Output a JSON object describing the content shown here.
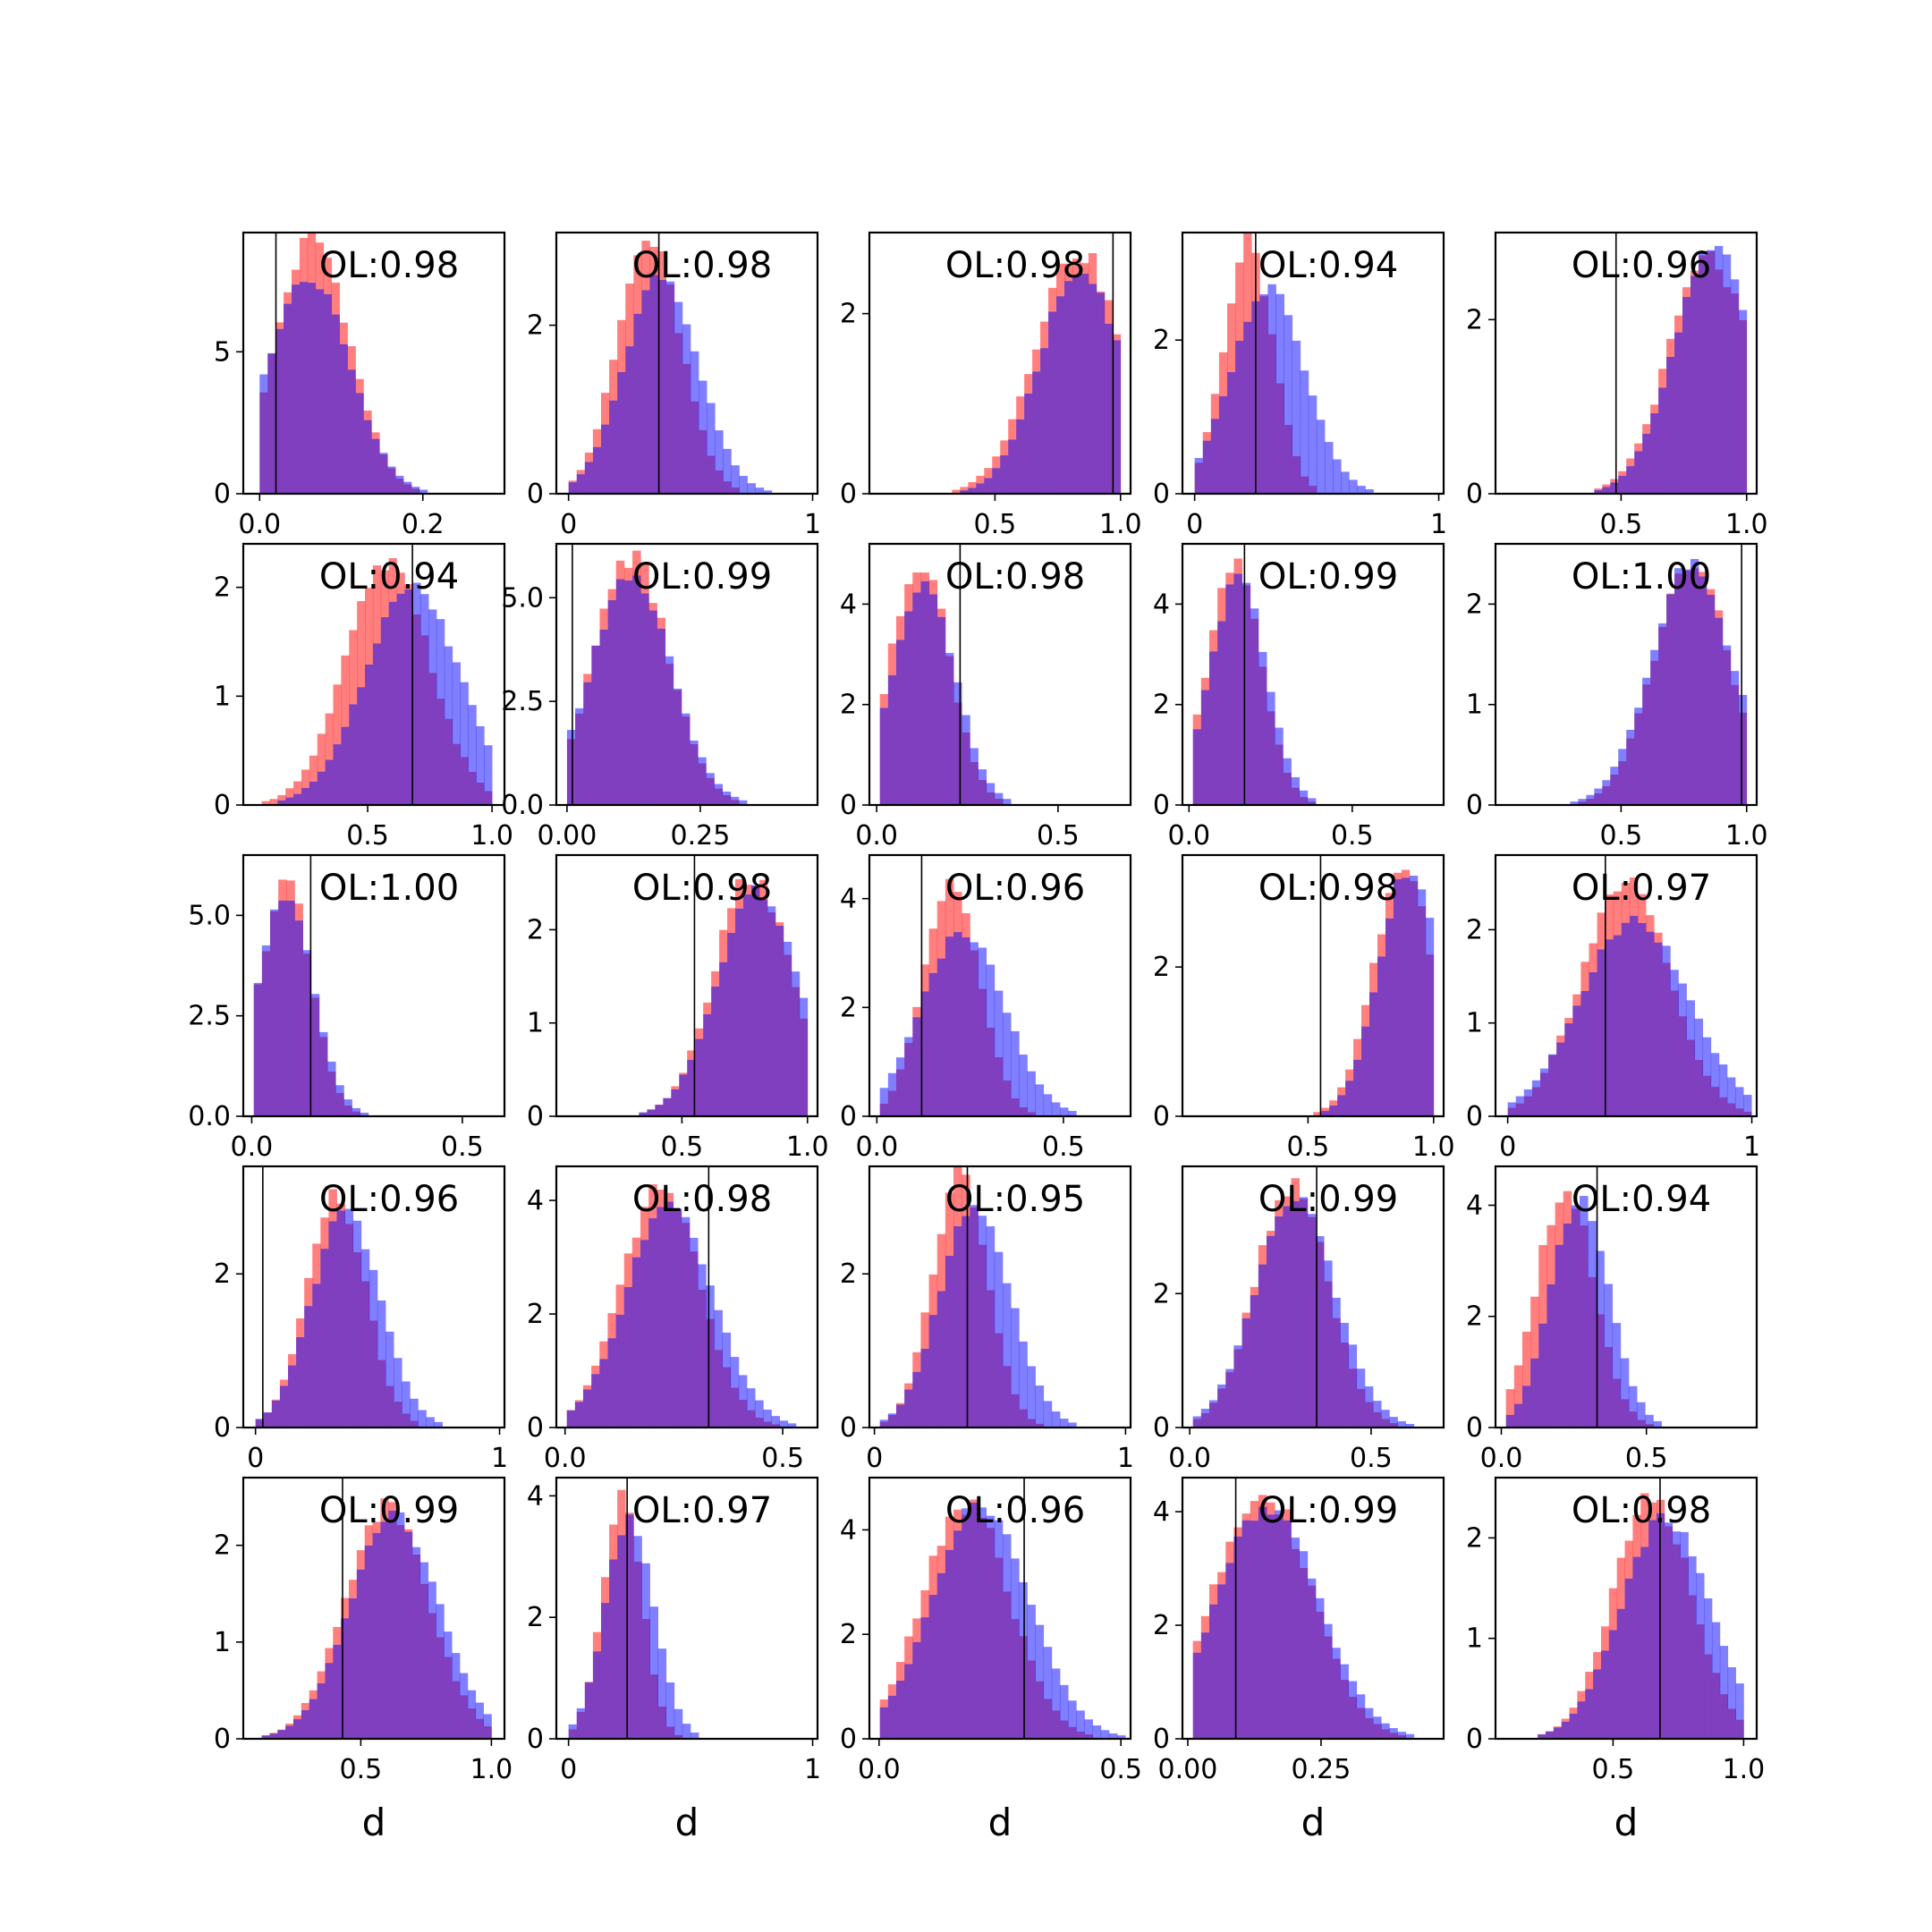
{
  "colors": {
    "red": "#ff0000",
    "blue": "#0000ff",
    "overlap": "#7f3fbf",
    "frame": "#000000"
  },
  "chart_data": [
    {
      "type": "histogram",
      "ol": "OL:0.98",
      "xlabel": "",
      "xlim": [
        -0.02,
        0.3
      ],
      "ylim": [
        0,
        9.2
      ],
      "xticks": [
        "0.0",
        "0.2"
      ],
      "xtick_values": [
        0.0,
        0.2
      ],
      "yticks": [
        "0",
        "5"
      ],
      "ytick_values": [
        0,
        5
      ],
      "vline": 0.02,
      "red": {
        "mean": 0.065,
        "sd": 0.045,
        "peak": 9.0
      },
      "blue": {
        "mean": 0.06,
        "sd": 0.05,
        "peak": 7.6
      }
    },
    {
      "type": "histogram",
      "ol": "OL:0.98",
      "xlabel": "",
      "xlim": [
        -0.05,
        1.02
      ],
      "ylim": [
        0,
        3.1
      ],
      "xticks": [
        "0",
        "1"
      ],
      "xtick_values": [
        0,
        1
      ],
      "yticks": [
        "0",
        "2"
      ],
      "ytick_values": [
        0,
        2
      ],
      "vline": 0.37,
      "red": {
        "mean": 0.33,
        "sd": 0.13,
        "peak": 3.0
      },
      "blue": {
        "mean": 0.38,
        "sd": 0.15,
        "peak": 2.6
      }
    },
    {
      "type": "histogram",
      "ol": "OL:0.98",
      "xlabel": "",
      "xlim": [
        0.0,
        1.04
      ],
      "ylim": [
        0,
        2.9
      ],
      "xticks": [
        "0.5",
        "1.0"
      ],
      "xtick_values": [
        0.5,
        1.0
      ],
      "yticks": [
        "0",
        "2"
      ],
      "ytick_values": [
        0,
        2
      ],
      "vline": 0.97,
      "red": {
        "mean": 0.83,
        "sd": 0.17,
        "peak": 2.7
      },
      "blue": {
        "mean": 0.84,
        "sd": 0.16,
        "peak": 2.5
      }
    },
    {
      "type": "histogram",
      "ol": "OL:0.94",
      "xlabel": "",
      "xlim": [
        -0.05,
        1.02
      ],
      "ylim": [
        0,
        3.4
      ],
      "xticks": [
        "0",
        "1"
      ],
      "xtick_values": [
        0,
        1
      ],
      "yticks": [
        "0",
        "2"
      ],
      "ytick_values": [
        0,
        2
      ],
      "vline": 0.25,
      "red": {
        "mean": 0.22,
        "sd": 0.1,
        "peak": 3.3
      },
      "blue": {
        "mean": 0.3,
        "sd": 0.15,
        "peak": 2.7
      }
    },
    {
      "type": "histogram",
      "ol": "OL:0.96",
      "xlabel": "",
      "xlim": [
        0.0,
        1.04
      ],
      "ylim": [
        0,
        3.0
      ],
      "xticks": [
        "0.5",
        "1.0"
      ],
      "xtick_values": [
        0.5,
        1.0
      ],
      "yticks": [
        "0",
        "2"
      ],
      "ytick_values": [
        0,
        2
      ],
      "vline": 0.48,
      "red": {
        "mean": 0.85,
        "sd": 0.16,
        "peak": 2.7
      },
      "blue": {
        "mean": 0.87,
        "sd": 0.16,
        "peak": 2.8
      }
    },
    {
      "type": "histogram",
      "ol": "OL:0.94",
      "xlabel": "",
      "xlim": [
        0.0,
        1.05
      ],
      "ylim": [
        0,
        2.4
      ],
      "xticks": [
        "0.5",
        "1.0"
      ],
      "xtick_values": [
        0.5,
        1.0
      ],
      "yticks": [
        "0",
        "1",
        "2"
      ],
      "ytick_values": [
        0,
        1,
        2
      ],
      "vline": 0.68,
      "red": {
        "mean": 0.58,
        "sd": 0.17,
        "peak": 2.2
      },
      "blue": {
        "mean": 0.68,
        "sd": 0.19,
        "peak": 2.0
      }
    },
    {
      "type": "histogram",
      "ol": "OL:0.99",
      "xlabel": "",
      "xlim": [
        -0.02,
        0.47
      ],
      "ylim": [
        0,
        6.3
      ],
      "xticks": [
        "0.00",
        "0.25"
      ],
      "xtick_values": [
        0.0,
        0.25
      ],
      "yticks": [
        "0.0",
        "2.5",
        "5.0"
      ],
      "ytick_values": [
        0,
        2.5,
        5.0
      ],
      "vline": 0.01,
      "red": {
        "mean": 0.12,
        "sd": 0.07,
        "peak": 6.0
      },
      "blue": {
        "mean": 0.12,
        "sd": 0.075,
        "peak": 5.5
      }
    },
    {
      "type": "histogram",
      "ol": "OL:0.98",
      "xlabel": "",
      "xlim": [
        -0.02,
        0.7
      ],
      "ylim": [
        0,
        5.2
      ],
      "xticks": [
        "0.0",
        "0.5"
      ],
      "xtick_values": [
        0.0,
        0.5
      ],
      "yticks": [
        "0",
        "2",
        "4"
      ],
      "ytick_values": [
        0,
        2,
        4
      ],
      "vline": 0.23,
      "red": {
        "mean": 0.12,
        "sd": 0.08,
        "peak": 4.9
      },
      "blue": {
        "mean": 0.13,
        "sd": 0.085,
        "peak": 4.4
      }
    },
    {
      "type": "histogram",
      "ol": "OL:0.99",
      "xlabel": "",
      "xlim": [
        -0.02,
        0.78
      ],
      "ylim": [
        0,
        5.2
      ],
      "xticks": [
        "0.0",
        "0.5"
      ],
      "xtick_values": [
        0.0,
        0.5
      ],
      "yticks": [
        "0",
        "2",
        "4"
      ],
      "ytick_values": [
        0,
        2,
        4
      ],
      "vline": 0.17,
      "red": {
        "mean": 0.14,
        "sd": 0.08,
        "peak": 4.9
      },
      "blue": {
        "mean": 0.15,
        "sd": 0.085,
        "peak": 4.5
      }
    },
    {
      "type": "histogram",
      "ol": "OL:1.00",
      "xlabel": "",
      "xlim": [
        0.0,
        1.04
      ],
      "ylim": [
        0,
        2.6
      ],
      "xticks": [
        "0.5",
        "1.0"
      ],
      "xtick_values": [
        0.5,
        1.0
      ],
      "yticks": [
        "0",
        "1",
        "2"
      ],
      "ytick_values": [
        0,
        1,
        2
      ],
      "vline": 0.98,
      "red": {
        "mean": 0.78,
        "sd": 0.15,
        "peak": 2.4
      },
      "blue": {
        "mean": 0.78,
        "sd": 0.16,
        "peak": 2.4
      }
    },
    {
      "type": "histogram",
      "ol": "OL:1.00",
      "xlabel": "",
      "xlim": [
        -0.02,
        0.6
      ],
      "ylim": [
        0,
        6.5
      ],
      "xticks": [
        "0.0",
        "0.5"
      ],
      "xtick_values": [
        0.0,
        0.5
      ],
      "yticks": [
        "0.0",
        "2.5",
        "5.0"
      ],
      "ytick_values": [
        0,
        2.5,
        5.0
      ],
      "vline": 0.14,
      "red": {
        "mean": 0.08,
        "sd": 0.06,
        "peak": 5.8
      },
      "blue": {
        "mean": 0.08,
        "sd": 0.065,
        "peak": 5.6
      }
    },
    {
      "type": "histogram",
      "ol": "OL:0.98",
      "xlabel": "",
      "xlim": [
        0.0,
        1.04
      ],
      "ylim": [
        0,
        2.8
      ],
      "xticks": [
        "0.5",
        "1.0"
      ],
      "xtick_values": [
        0.5,
        1.0
      ],
      "yticks": [
        "0",
        "1",
        "2"
      ],
      "ytick_values": [
        0,
        1,
        2
      ],
      "vline": 0.55,
      "red": {
        "mean": 0.78,
        "sd": 0.15,
        "peak": 2.6
      },
      "blue": {
        "mean": 0.8,
        "sd": 0.16,
        "peak": 2.4
      }
    },
    {
      "type": "histogram",
      "ol": "OL:0.96",
      "xlabel": "",
      "xlim": [
        -0.02,
        0.68
      ],
      "ylim": [
        0,
        4.8
      ],
      "xticks": [
        "0.0",
        "0.5"
      ],
      "xtick_values": [
        0.0,
        0.5
      ],
      "yticks": [
        "0",
        "2",
        "4"
      ],
      "ytick_values": [
        0,
        2,
        4
      ],
      "vline": 0.12,
      "red": {
        "mean": 0.2,
        "sd": 0.075,
        "peak": 4.4
      },
      "blue": {
        "mean": 0.23,
        "sd": 0.11,
        "peak": 3.4
      }
    },
    {
      "type": "histogram",
      "ol": "OL:0.98",
      "xlabel": "",
      "xlim": [
        0.0,
        1.04
      ],
      "ylim": [
        0,
        3.5
      ],
      "xticks": [
        "0.5",
        "1.0"
      ],
      "xtick_values": [
        0.5,
        1.0
      ],
      "yticks": [
        "0",
        "2"
      ],
      "ytick_values": [
        0,
        2
      ],
      "vline": 0.55,
      "red": {
        "mean": 0.88,
        "sd": 0.12,
        "peak": 3.3
      },
      "blue": {
        "mean": 0.9,
        "sd": 0.12,
        "peak": 3.3
      }
    },
    {
      "type": "histogram",
      "ol": "OL:0.97",
      "xlabel": "",
      "xlim": [
        -0.05,
        1.02
      ],
      "ylim": [
        0,
        2.8
      ],
      "xticks": [
        "0",
        "1"
      ],
      "xtick_values": [
        0,
        1
      ],
      "yticks": [
        "0",
        "1",
        "2"
      ],
      "ytick_values": [
        0,
        1,
        2
      ],
      "vline": 0.4,
      "red": {
        "mean": 0.48,
        "sd": 0.18,
        "peak": 2.5
      },
      "blue": {
        "mean": 0.52,
        "sd": 0.22,
        "peak": 2.1
      }
    },
    {
      "type": "histogram",
      "ol": "OL:0.96",
      "xlabel": "",
      "xlim": [
        -0.05,
        1.02
      ],
      "ylim": [
        0,
        3.4
      ],
      "xticks": [
        "0",
        "1"
      ],
      "xtick_values": [
        0,
        1
      ],
      "yticks": [
        "0",
        "2"
      ],
      "ytick_values": [
        0,
        2
      ],
      "vline": 0.03,
      "red": {
        "mean": 0.33,
        "sd": 0.12,
        "peak": 3.0
      },
      "blue": {
        "mean": 0.37,
        "sd": 0.14,
        "peak": 2.8
      }
    },
    {
      "type": "histogram",
      "ol": "OL:0.98",
      "xlabel": "",
      "xlim": [
        -0.02,
        0.58
      ],
      "ylim": [
        0,
        4.6
      ],
      "xticks": [
        "0.0",
        "0.5"
      ],
      "xtick_values": [
        0.0,
        0.5
      ],
      "yticks": [
        "0",
        "2",
        "4"
      ],
      "ytick_values": [
        0,
        2,
        4
      ],
      "vline": 0.33,
      "red": {
        "mean": 0.22,
        "sd": 0.09,
        "peak": 4.2
      },
      "blue": {
        "mean": 0.24,
        "sd": 0.1,
        "peak": 3.9
      }
    },
    {
      "type": "histogram",
      "ol": "OL:0.95",
      "xlabel": "",
      "xlim": [
        -0.02,
        1.02
      ],
      "ylim": [
        0,
        3.4
      ],
      "xticks": [
        "0",
        "1"
      ],
      "xtick_values": [
        0,
        1
      ],
      "yticks": [
        "0",
        "2"
      ],
      "ytick_values": [
        0,
        2
      ],
      "vline": 0.37,
      "red": {
        "mean": 0.34,
        "sd": 0.11,
        "peak": 3.3
      },
      "blue": {
        "mean": 0.4,
        "sd": 0.14,
        "peak": 2.9
      }
    },
    {
      "type": "histogram",
      "ol": "OL:0.99",
      "xlabel": "",
      "xlim": [
        -0.02,
        0.7
      ],
      "ylim": [
        0,
        3.9
      ],
      "xticks": [
        "0.0",
        "0.5"
      ],
      "xtick_values": [
        0.0,
        0.5
      ],
      "yticks": [
        "0",
        "2"
      ],
      "ytick_values": [
        0,
        2
      ],
      "vline": 0.35,
      "red": {
        "mean": 0.28,
        "sd": 0.1,
        "peak": 3.6
      },
      "blue": {
        "mean": 0.29,
        "sd": 0.11,
        "peak": 3.4
      }
    },
    {
      "type": "histogram",
      "ol": "OL:0.94",
      "xlabel": "",
      "xlim": [
        -0.02,
        0.88
      ],
      "ylim": [
        0,
        4.7
      ],
      "xticks": [
        "0.0",
        "0.5"
      ],
      "xtick_values": [
        0.0,
        0.5
      ],
      "yticks": [
        "0",
        "2",
        "4"
      ],
      "ytick_values": [
        0,
        2,
        4
      ],
      "vline": 0.33,
      "red": {
        "mean": 0.22,
        "sd": 0.1,
        "peak": 4.3
      },
      "blue": {
        "mean": 0.27,
        "sd": 0.1,
        "peak": 4.1
      }
    },
    {
      "type": "histogram",
      "ol": "OL:0.99",
      "xlabel": "d",
      "xlim": [
        0.05,
        1.05
      ],
      "ylim": [
        0,
        2.7
      ],
      "xticks": [
        "0.5",
        "1.0"
      ],
      "xtick_values": [
        0.5,
        1.0
      ],
      "yticks": [
        "0",
        "1",
        "2"
      ],
      "ytick_values": [
        0,
        1,
        2
      ],
      "vline": 0.43,
      "red": {
        "mean": 0.6,
        "sd": 0.16,
        "peak": 2.4
      },
      "blue": {
        "mean": 0.63,
        "sd": 0.17,
        "peak": 2.3
      }
    },
    {
      "type": "histogram",
      "ol": "OL:0.97",
      "xlabel": "d",
      "xlim": [
        -0.05,
        1.02
      ],
      "ylim": [
        0,
        4.3
      ],
      "xticks": [
        "0",
        "1"
      ],
      "xtick_values": [
        0,
        1
      ],
      "yticks": [
        "0",
        "2",
        "4"
      ],
      "ytick_values": [
        0,
        2,
        4
      ],
      "vline": 0.24,
      "red": {
        "mean": 0.22,
        "sd": 0.08,
        "peak": 4.1
      },
      "blue": {
        "mean": 0.25,
        "sd": 0.1,
        "peak": 3.6
      }
    },
    {
      "type": "histogram",
      "ol": "OL:0.96",
      "xlabel": "d",
      "xlim": [
        -0.02,
        0.52
      ],
      "ylim": [
        0,
        5.0
      ],
      "xticks": [
        "0.0",
        "0.5"
      ],
      "xtick_values": [
        0.0,
        0.5
      ],
      "yticks": [
        "0",
        "2",
        "4"
      ],
      "ytick_values": [
        0,
        2,
        4
      ],
      "vline": 0.3,
      "red": {
        "mean": 0.18,
        "sd": 0.09,
        "peak": 4.5
      },
      "blue": {
        "mean": 0.21,
        "sd": 0.1,
        "peak": 4.5
      }
    },
    {
      "type": "histogram",
      "ol": "OL:0.99",
      "xlabel": "d",
      "xlim": [
        -0.01,
        0.48
      ],
      "ylim": [
        0,
        4.6
      ],
      "xticks": [
        "0.00",
        "0.25"
      ],
      "xtick_values": [
        0.0,
        0.25
      ],
      "yticks": [
        "0",
        "2",
        "4"
      ],
      "ytick_values": [
        0,
        2,
        4
      ],
      "vline": 0.09,
      "red": {
        "mean": 0.14,
        "sd": 0.09,
        "peak": 4.4
      },
      "blue": {
        "mean": 0.15,
        "sd": 0.095,
        "peak": 4.1
      }
    },
    {
      "type": "histogram",
      "ol": "OL:0.98",
      "xlabel": "d",
      "xlim": [
        0.05,
        1.05
      ],
      "ylim": [
        0,
        2.6
      ],
      "xticks": [
        "0.5",
        "1.0"
      ],
      "xtick_values": [
        0.5,
        1.0
      ],
      "yticks": [
        "0",
        "1",
        "2"
      ],
      "ytick_values": [
        0,
        1,
        2
      ],
      "vline": 0.68,
      "red": {
        "mean": 0.65,
        "sd": 0.15,
        "peak": 2.4
      },
      "blue": {
        "mean": 0.7,
        "sd": 0.17,
        "peak": 2.2
      }
    }
  ]
}
